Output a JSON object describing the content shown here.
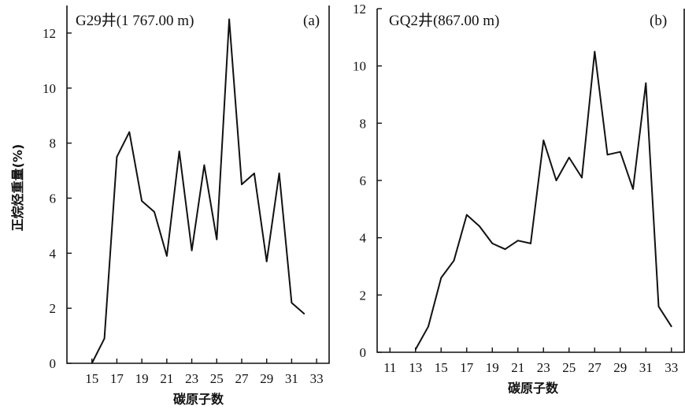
{
  "ylabel": "正烷烃重量(%)",
  "chart_data": [
    {
      "type": "line",
      "title": "G29井(1 767.00 m)",
      "tag": "(a)",
      "xlabel": "碳原子数",
      "ylabel": "正烷烃重量(%)",
      "xlim": [
        13,
        34
      ],
      "ylim": [
        0,
        13
      ],
      "xticks": [
        "15",
        "17",
        "19",
        "21",
        "23",
        "25",
        "27",
        "29",
        "31",
        "33"
      ],
      "yticks": [
        "0",
        "2",
        "4",
        "6",
        "8",
        "10",
        "12"
      ],
      "series": [
        {
          "x": [
            15,
            16,
            17,
            18,
            19,
            20,
            21,
            22,
            23,
            24,
            25,
            26,
            27,
            28,
            29,
            30,
            31,
            32,
            33
          ],
          "values": [
            0,
            0.9,
            7.5,
            8.4,
            5.9,
            5.5,
            3.9,
            7.7,
            4.1,
            7.2,
            4.5,
            12.5,
            6.5,
            6.9,
            3.7,
            6.9,
            2.2,
            1.8,
            null
          ]
        }
      ]
    },
    {
      "type": "line",
      "title": "GQ2井(867.00 m)",
      "tag": "(b)",
      "xlabel": "碳原子数",
      "xlim": [
        10,
        34
      ],
      "ylim": [
        0,
        12
      ],
      "xticks": [
        "11",
        "13",
        "15",
        "17",
        "19",
        "21",
        "23",
        "25",
        "27",
        "29",
        "31",
        "33"
      ],
      "yticks": [
        "0",
        "2",
        "4",
        "6",
        "8",
        "10",
        "12"
      ],
      "series": [
        {
          "x": [
            13,
            14,
            15,
            16,
            17,
            18,
            19,
            20,
            21,
            22,
            23,
            24,
            25,
            26,
            27,
            28,
            29,
            30,
            31,
            32,
            33
          ],
          "values": [
            0.1,
            0.9,
            2.6,
            3.2,
            4.8,
            4.4,
            3.8,
            3.6,
            3.9,
            3.8,
            7.4,
            6.0,
            6.8,
            6.1,
            10.5,
            6.9,
            7.0,
            5.7,
            9.4,
            1.6,
            0.9
          ]
        }
      ]
    }
  ]
}
